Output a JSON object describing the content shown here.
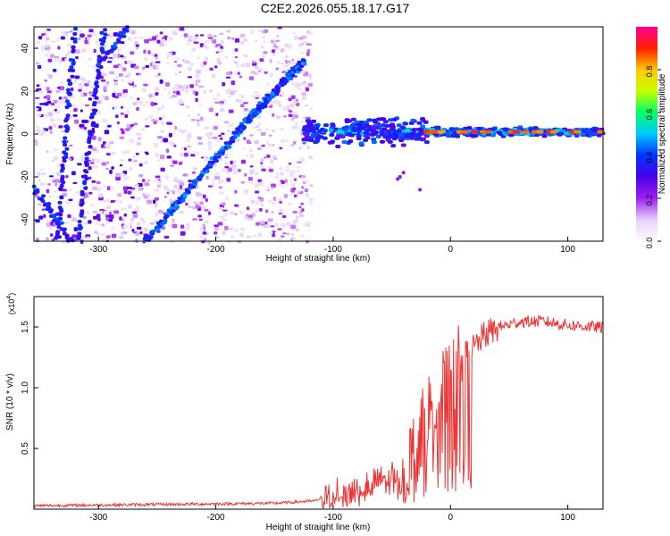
{
  "title": "C2E2.2026.055.18.17.G17",
  "chart_data": [
    {
      "type": "heatmap",
      "xlabel": "Height of straight line (km)",
      "ylabel": "Frequency (Hz)",
      "xlim": [
        -355,
        130
      ],
      "ylim": [
        -50,
        50
      ],
      "xticks": [
        -300,
        -200,
        -100,
        0,
        100
      ],
      "yticks": [
        -40,
        -20,
        0,
        20,
        40
      ],
      "colorbar": {
        "label": "Normalized spectral amplitude",
        "range": [
          0,
          1
        ],
        "ticks": [
          0.0,
          0.2,
          0.4,
          0.6,
          0.8
        ],
        "tick_labels": [
          "0.0",
          "0.2",
          "0.4",
          "0.6",
          "0.8"
        ],
        "colors": [
          "#ffffff",
          "#e6d0f7",
          "#a020f0",
          "#4a00e8",
          "#0033ff",
          "#00c8ff",
          "#00ff66",
          "#c8ff00",
          "#ffc800",
          "#ff2000",
          "#ff0090"
        ]
      },
      "features": {
        "noise_region_x": [
          -355,
          -120
        ],
        "line_a": {
          "points": [
            [
              -335,
              -50
            ],
            [
              -320,
              50
            ]
          ]
        },
        "line_b": {
          "points": [
            [
              -318,
              -50
            ],
            [
              -295,
              50
            ]
          ]
        },
        "line_c": {
          "points": [
            [
              -300,
              32
            ],
            [
              -275,
              50
            ]
          ]
        },
        "line_d": {
          "points": [
            [
              -260,
              -50
            ],
            [
              -175,
              5
            ],
            [
              -125,
              34
            ]
          ]
        },
        "line_e": {
          "points": [
            [
              -355,
              -25
            ],
            [
              -320,
              -52
            ]
          ]
        },
        "signal_band": {
          "x_range": [
            -125,
            130
          ],
          "y": 1
        }
      }
    },
    {
      "type": "line",
      "xlabel": "Height of straight line (km)",
      "ylabel": "SNR (10 * v/v)",
      "scale_label": "(x10",
      "scale_exponent": "4",
      "xlim": [
        -355,
        130
      ],
      "ylim": [
        0,
        1.75
      ],
      "xticks": [
        -300,
        -200,
        -100,
        0,
        100
      ],
      "yticks": [
        0.5,
        1.0,
        1.5
      ],
      "ytick_labels": [
        "0.5",
        "1.0",
        "1.5"
      ],
      "series": [
        {
          "color": "#ee3333",
          "points": [
            [
              -355,
              0.03
            ],
            [
              -250,
              0.04
            ],
            [
              -150,
              0.05
            ],
            [
              -115,
              0.07
            ],
            [
              -100,
              0.15
            ],
            [
              -80,
              0.2
            ],
            [
              -60,
              0.25
            ],
            [
              -40,
              0.35
            ],
            [
              -30,
              0.5
            ],
            [
              -20,
              0.8
            ],
            [
              -10,
              1.0
            ],
            [
              0,
              1.1
            ],
            [
              10,
              1.25
            ],
            [
              20,
              1.35
            ],
            [
              30,
              1.45
            ],
            [
              40,
              1.5
            ],
            [
              60,
              1.55
            ],
            [
              80,
              1.55
            ],
            [
              100,
              1.52
            ],
            [
              130,
              1.5
            ]
          ]
        }
      ]
    }
  ]
}
